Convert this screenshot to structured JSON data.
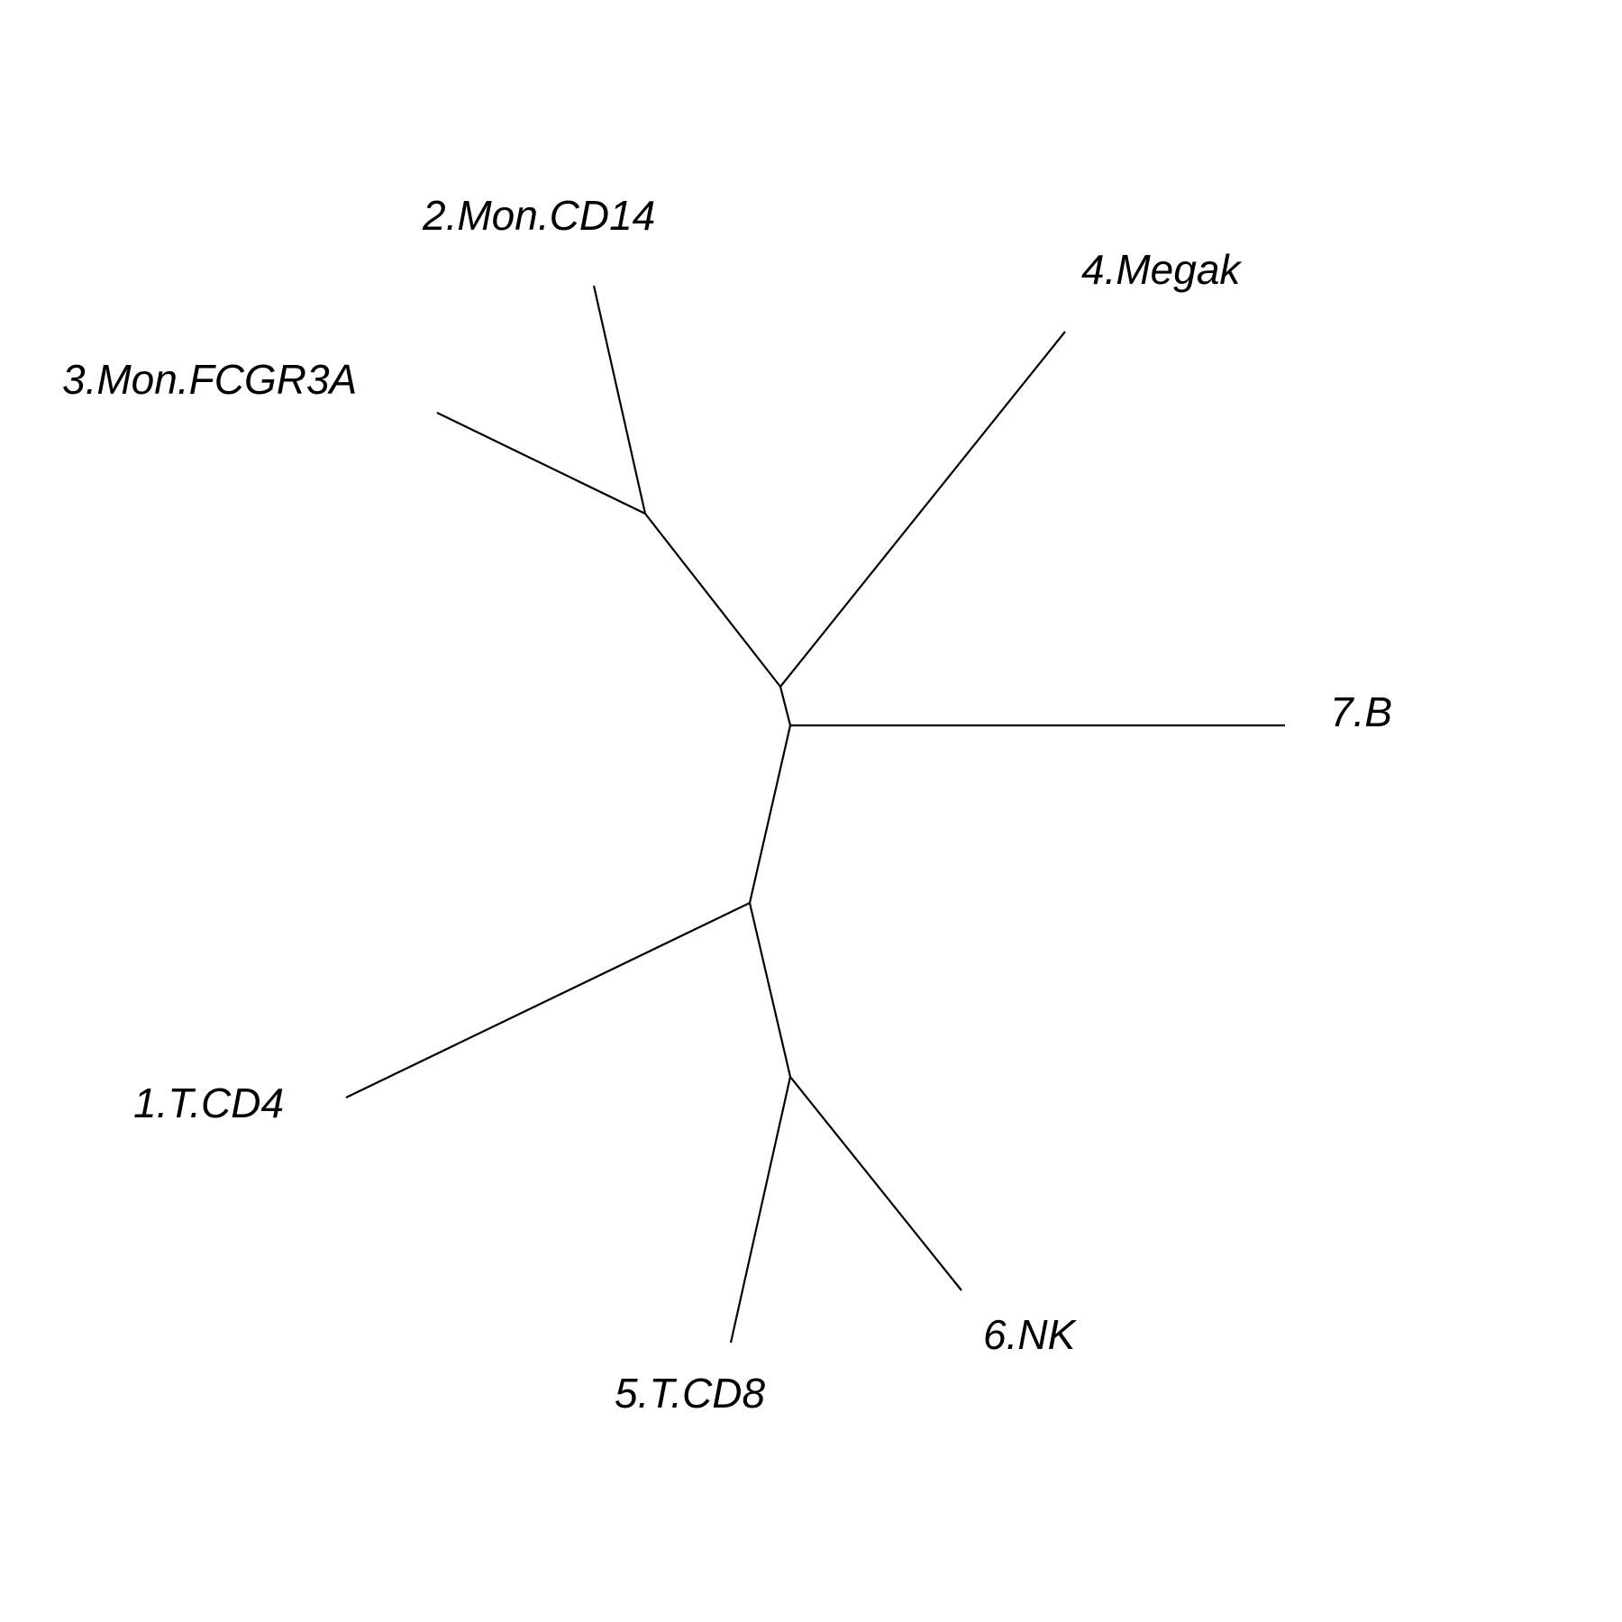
{
  "diagram": {
    "type": "unrooted-tree",
    "colors": {
      "background": "#ffffff",
      "line": "#000000",
      "text": "#000000"
    },
    "tips": [
      {
        "id": "t1",
        "label": "1.T.CD4"
      },
      {
        "id": "t2",
        "label": "2.Mon.CD14"
      },
      {
        "id": "t3",
        "label": "3.Mon.FCGR3A"
      },
      {
        "id": "t4",
        "label": "4.Megak"
      },
      {
        "id": "t5",
        "label": "5.T.CD8"
      },
      {
        "id": "t6",
        "label": "6.NK"
      },
      {
        "id": "t7",
        "label": "7.B"
      }
    ]
  }
}
